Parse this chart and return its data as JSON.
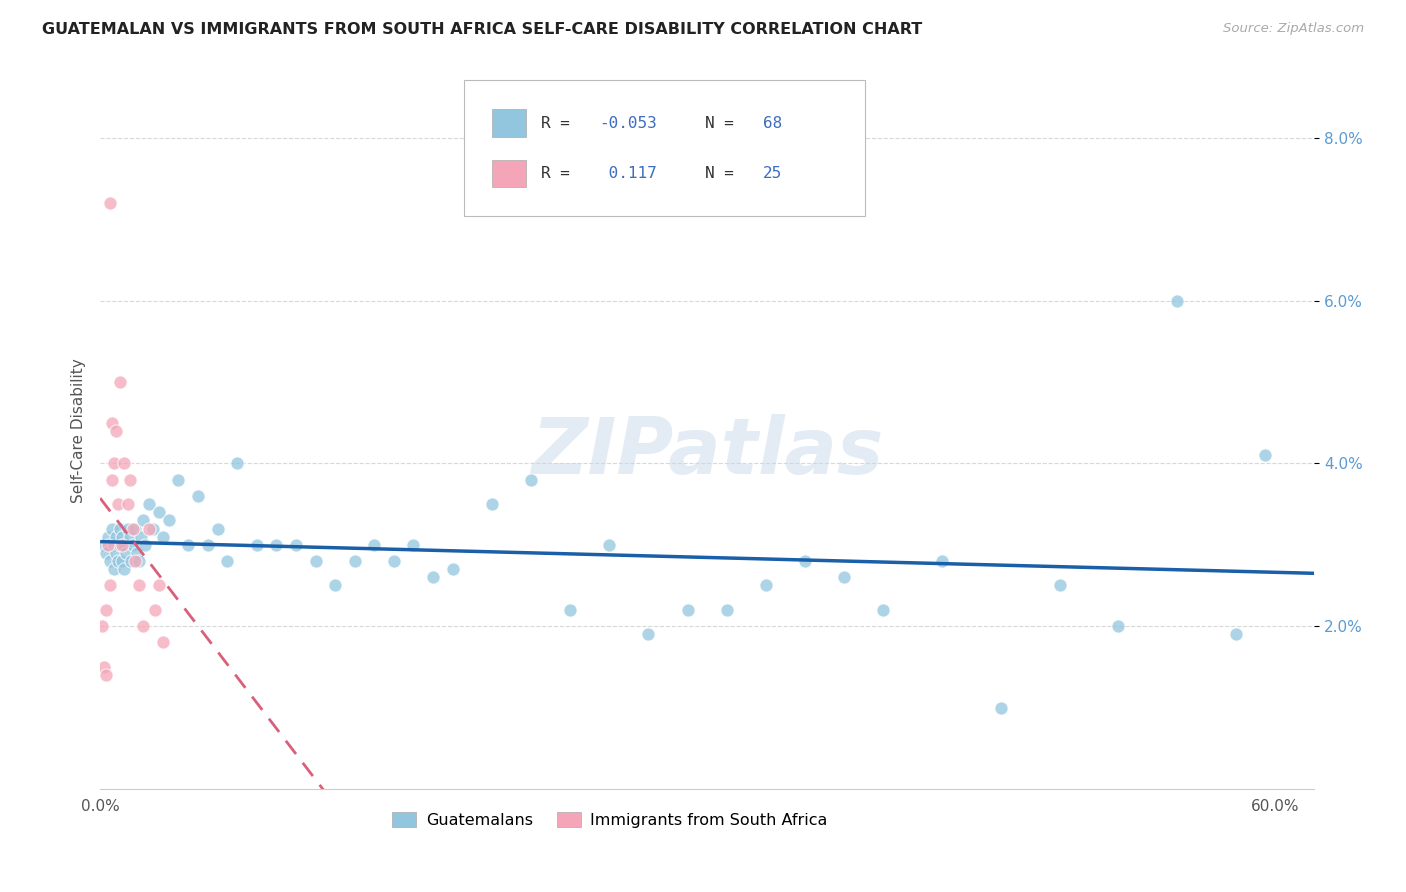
{
  "title": "GUATEMALAN VS IMMIGRANTS FROM SOUTH AFRICA SELF-CARE DISABILITY CORRELATION CHART",
  "source": "Source: ZipAtlas.com",
  "ylabel": "Self-Care Disability",
  "xlim": [
    0.0,
    0.62
  ],
  "ylim": [
    0.0,
    0.088
  ],
  "xtick_vals": [
    0.0,
    0.1,
    0.2,
    0.3,
    0.4,
    0.5,
    0.6
  ],
  "xtick_labels": [
    "0.0%",
    "",
    "",
    "",
    "",
    "",
    "60.0%"
  ],
  "ytick_vals": [
    0.02,
    0.04,
    0.06,
    0.08
  ],
  "ytick_labels": [
    "2.0%",
    "4.0%",
    "6.0%",
    "8.0%"
  ],
  "r_guatemalan": -0.053,
  "n_guatemalan": 68,
  "r_south_africa": 0.117,
  "n_south_africa": 25,
  "color_guatemalan": "#92c5de",
  "color_south_africa": "#f4a6b8",
  "line_color_guatemalan": "#1a5fa8",
  "line_color_south_africa": "#d95f7a",
  "background_color": "#ffffff",
  "grid_color": "#d8d8d8",
  "guatemalan_x": [
    0.002,
    0.003,
    0.004,
    0.005,
    0.006,
    0.007,
    0.007,
    0.008,
    0.008,
    0.009,
    0.01,
    0.01,
    0.011,
    0.011,
    0.012,
    0.012,
    0.013,
    0.014,
    0.015,
    0.016,
    0.017,
    0.018,
    0.019,
    0.02,
    0.021,
    0.022,
    0.023,
    0.025,
    0.027,
    0.03,
    0.032,
    0.035,
    0.04,
    0.045,
    0.05,
    0.055,
    0.06,
    0.065,
    0.07,
    0.08,
    0.09,
    0.1,
    0.11,
    0.12,
    0.13,
    0.14,
    0.15,
    0.16,
    0.17,
    0.18,
    0.2,
    0.22,
    0.24,
    0.26,
    0.28,
    0.3,
    0.32,
    0.34,
    0.36,
    0.38,
    0.4,
    0.43,
    0.46,
    0.49,
    0.52,
    0.55,
    0.58,
    0.595
  ],
  "guatemalan_y": [
    0.03,
    0.029,
    0.031,
    0.028,
    0.032,
    0.03,
    0.027,
    0.031,
    0.029,
    0.028,
    0.03,
    0.032,
    0.028,
    0.031,
    0.027,
    0.03,
    0.029,
    0.032,
    0.031,
    0.028,
    0.03,
    0.032,
    0.029,
    0.028,
    0.031,
    0.033,
    0.03,
    0.035,
    0.032,
    0.034,
    0.031,
    0.033,
    0.038,
    0.03,
    0.036,
    0.03,
    0.032,
    0.028,
    0.04,
    0.03,
    0.03,
    0.03,
    0.028,
    0.025,
    0.028,
    0.03,
    0.028,
    0.03,
    0.026,
    0.027,
    0.035,
    0.038,
    0.022,
    0.03,
    0.019,
    0.022,
    0.022,
    0.025,
    0.028,
    0.026,
    0.022,
    0.028,
    0.01,
    0.025,
    0.02,
    0.06,
    0.019,
    0.041
  ],
  "south_africa_x": [
    0.001,
    0.002,
    0.003,
    0.003,
    0.004,
    0.005,
    0.005,
    0.006,
    0.006,
    0.007,
    0.008,
    0.009,
    0.01,
    0.011,
    0.012,
    0.014,
    0.015,
    0.017,
    0.018,
    0.02,
    0.022,
    0.025,
    0.028,
    0.03,
    0.032
  ],
  "south_africa_y": [
    0.02,
    0.015,
    0.022,
    0.014,
    0.03,
    0.072,
    0.025,
    0.045,
    0.038,
    0.04,
    0.044,
    0.035,
    0.05,
    0.03,
    0.04,
    0.035,
    0.038,
    0.032,
    0.028,
    0.025,
    0.02,
    0.032,
    0.022,
    0.025,
    0.018
  ],
  "legend_r1_label": "R = -0.053  N = 68",
  "legend_r2_label": "R =  0.117  N = 25"
}
